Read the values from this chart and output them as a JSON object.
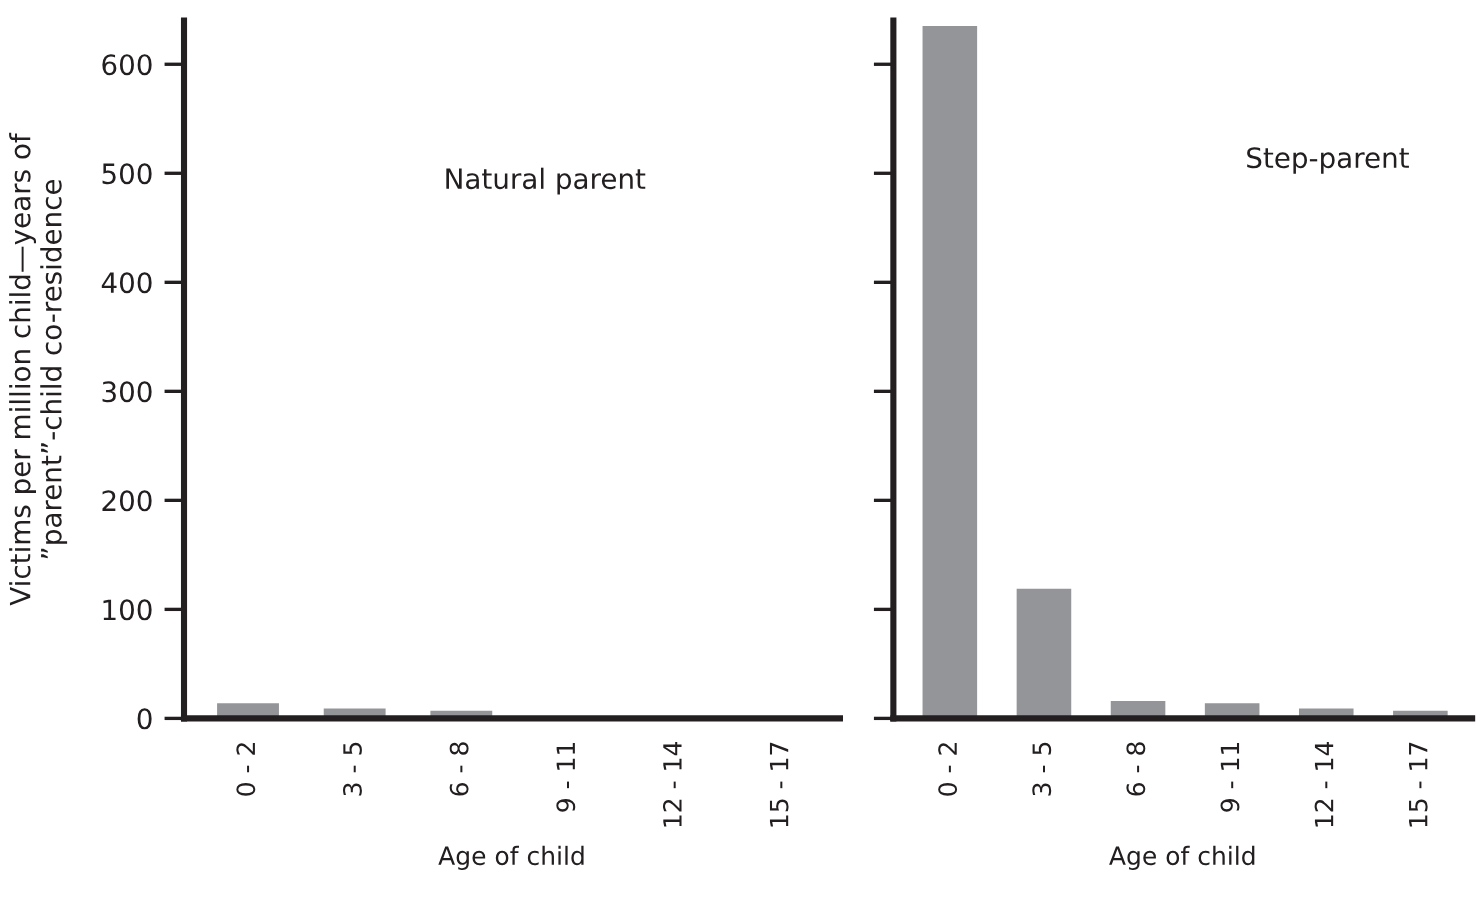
{
  "chart_data": [
    {
      "type": "bar",
      "title": "Natural parent",
      "ylabel": "Victims per million child—years of\n”parent”-child co-residence",
      "xlabel": "Age of child",
      "categories": [
        "0 - 2",
        "3 - 5",
        "6 - 8",
        "9 - 11",
        "12 - 14",
        "15 - 17"
      ],
      "values": [
        14,
        9,
        7,
        0,
        0,
        0
      ],
      "color": "#939598",
      "ylim": [
        0,
        640
      ],
      "yticks": [
        0,
        100,
        200,
        300,
        400,
        500,
        600
      ],
      "grid": false
    },
    {
      "type": "bar",
      "title": "Step-parent",
      "xlabel": "Age of child",
      "categories": [
        "0 - 2",
        "3 - 5",
        "6 - 8",
        "9 - 11",
        "12 - 14",
        "15 - 17"
      ],
      "values": [
        635,
        119,
        16,
        14,
        9,
        7
      ],
      "color": "#939598",
      "ylim": [
        0,
        640
      ],
      "yticks": [
        0,
        100,
        200,
        300,
        400,
        500,
        600
      ],
      "grid": false,
      "tick_labels": "x"
    }
  ]
}
